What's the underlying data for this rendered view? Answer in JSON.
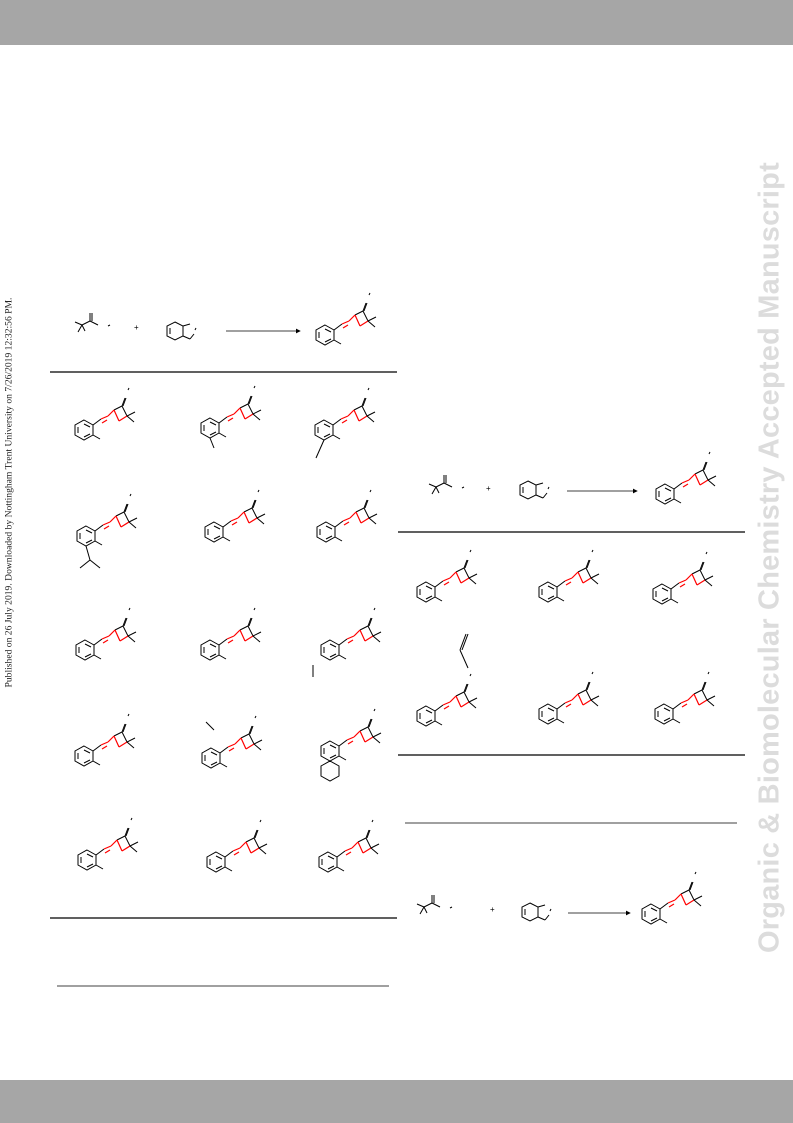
{
  "header_band": "",
  "footer_band": "",
  "published_note": "Published on 26 July 2019. Downloaded by Nottingham Trent University on 7/26/2019 12:32:56 PM.",
  "watermark": "Organic & Biomolecular Chemistry Accepted Manuscript",
  "schemes": {
    "scheme1": {
      "plus_sign": "+",
      "product_rows": 5,
      "product_columns": 3
    },
    "scheme2": {
      "plus_sign": "+",
      "product_rows": 2,
      "product_columns": 3
    },
    "scheme3": {
      "plus_sign": "+"
    }
  }
}
